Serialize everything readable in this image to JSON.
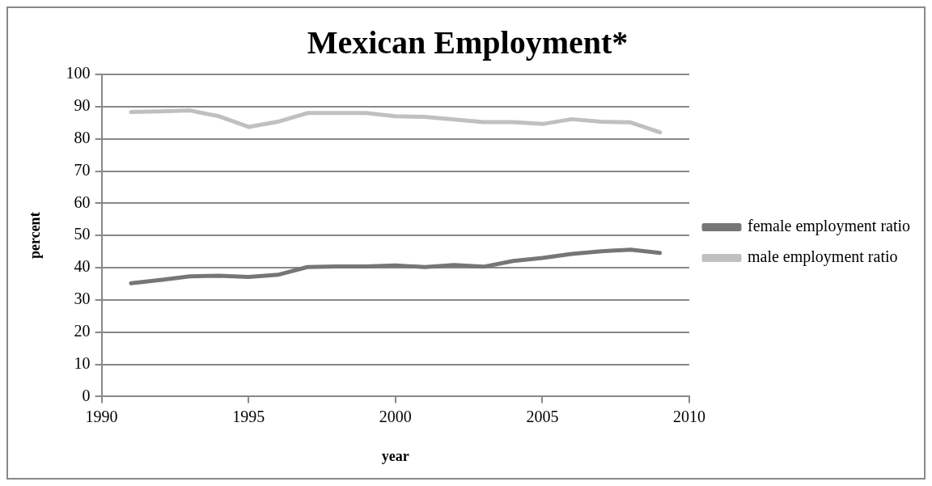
{
  "chart_data": {
    "type": "line",
    "title": "Mexican Employment*",
    "xlabel": "year",
    "ylabel": "percent",
    "x": [
      1991,
      1992,
      1993,
      1994,
      1995,
      1996,
      1997,
      1998,
      1999,
      2000,
      2001,
      2002,
      2003,
      2004,
      2005,
      2006,
      2007,
      2008,
      2009
    ],
    "series": [
      {
        "name": "female employment ratio",
        "color": "#767676",
        "values": [
          35.2,
          36.2,
          37.3,
          37.5,
          37.1,
          37.8,
          40.2,
          40.4,
          40.4,
          40.7,
          40.2,
          40.8,
          40.3,
          42.1,
          43,
          44.3,
          45.1,
          45.6,
          44.6
        ]
      },
      {
        "name": "male employment ratio",
        "color": "#c0c0c0",
        "values": [
          88.3,
          88.5,
          88.8,
          87,
          83.7,
          85.3,
          88,
          88,
          88,
          87,
          86.8,
          86,
          85.2,
          85.2,
          84.6,
          86.1,
          85.3,
          85.1,
          82
        ]
      }
    ],
    "xlim": [
      1990,
      2010
    ],
    "xticks": [
      1990,
      1995,
      2000,
      2005,
      2010
    ],
    "ylim": [
      0,
      100
    ],
    "yticks": [
      0,
      10,
      20,
      30,
      40,
      50,
      60,
      70,
      80,
      90,
      100
    ],
    "grid": "y",
    "legend": "right",
    "marker": "none",
    "line_style": "solid"
  }
}
